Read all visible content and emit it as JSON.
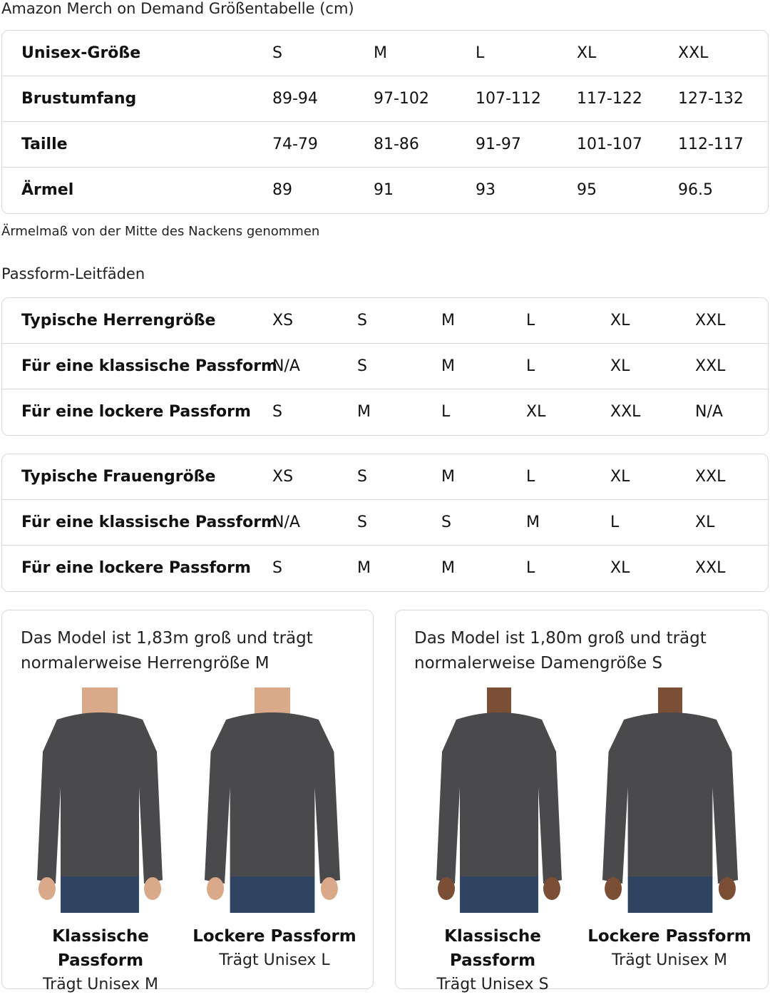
{
  "title": "Amazon Merch on Demand Größentabelle (cm)",
  "size_table": {
    "rows": [
      [
        "Unisex-Größe",
        "S",
        "M",
        "L",
        "XL",
        "XXL"
      ],
      [
        "Brustumfang",
        "89-94",
        "97-102",
        "107-112",
        "117-122",
        "127-132"
      ],
      [
        "Taille",
        "74-79",
        "81-86",
        "91-97",
        "101-107",
        "112-117"
      ],
      [
        "Ärmel",
        "89",
        "91",
        "93",
        "95",
        "96.5"
      ]
    ]
  },
  "note": "Ärmelmaß von der Mitte des Nackens genommen",
  "fit_heading": "Passform-Leitfäden",
  "men_table": {
    "rows": [
      [
        "Typische Herrengröße",
        "XS",
        "S",
        "M",
        "L",
        "XL",
        "XXL"
      ],
      [
        "Für eine klassische Passform",
        "N/A",
        "S",
        "M",
        "L",
        "XL",
        "XXL"
      ],
      [
        "Für eine lockere Passform",
        "S",
        "M",
        "L",
        "XL",
        "XXL",
        "N/A"
      ]
    ]
  },
  "women_table": {
    "rows": [
      [
        "Typische Frauengröße",
        "XS",
        "S",
        "M",
        "L",
        "XL",
        "XXL"
      ],
      [
        "Für eine klassische Passform",
        "N/A",
        "S",
        "S",
        "M",
        "L",
        "XL"
      ],
      [
        "Für eine lockere Passform",
        "S",
        "M",
        "M",
        "L",
        "XL",
        "XXL"
      ]
    ]
  },
  "cards": [
    {
      "desc1": "Das Model ist 1,83m groß und trägt",
      "desc2": "normalerweise Herrengröße M",
      "figures": [
        {
          "title": "Klassische Passform",
          "sub": "Trägt Unisex M"
        },
        {
          "title": "Lockere Passform",
          "sub": "Trägt Unisex L"
        }
      ]
    },
    {
      "desc1": "Das Model ist 1,80m groß und trägt",
      "desc2": "normalerweise Damengröße S",
      "figures": [
        {
          "title": "Klassische Passform",
          "sub": "Trägt Unisex S"
        },
        {
          "title": "Lockere Passform",
          "sub": "Trägt Unisex M"
        }
      ]
    }
  ],
  "colors": {
    "sweatshirt": "#4a4a4c",
    "jeans": "#2e4460",
    "border": "#d5d9d9"
  }
}
